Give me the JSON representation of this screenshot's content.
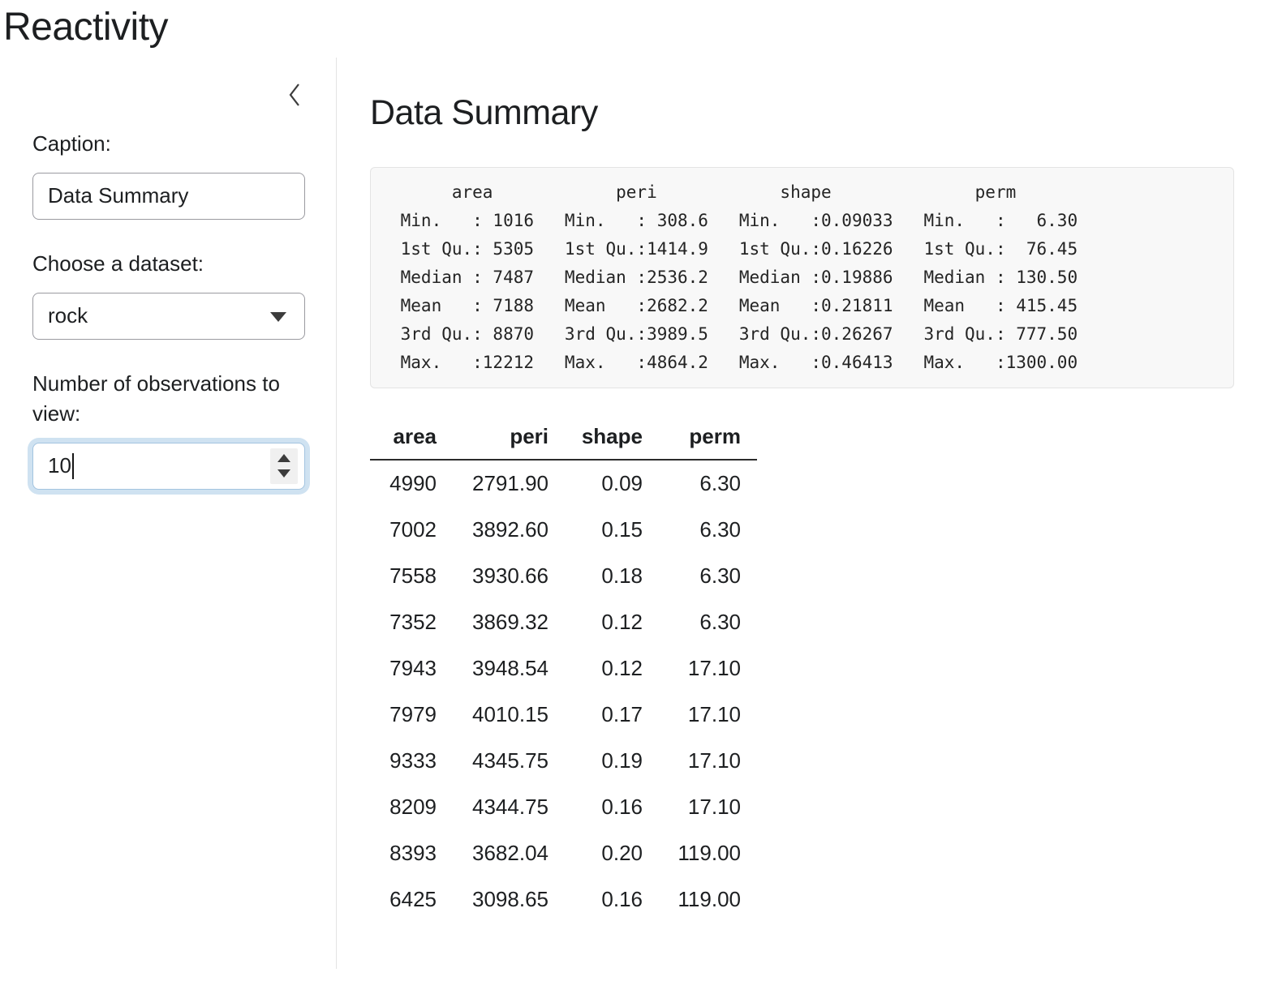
{
  "app": {
    "title": "Reactivity"
  },
  "sidebar": {
    "caption": {
      "label": "Caption:",
      "value": "Data Summary"
    },
    "dataset": {
      "label": "Choose a dataset:",
      "value": "rock"
    },
    "observations": {
      "label": "Number of observations to view:",
      "value": "10"
    }
  },
  "main": {
    "heading": "Data Summary",
    "summary_lines": [
      "      area            peri            shape              perm       ",
      " Min.   : 1016   Min.   : 308.6   Min.   :0.09033   Min.   :   6.30",
      " 1st Qu.: 5305   1st Qu.:1414.9   1st Qu.:0.16226   1st Qu.:  76.45",
      " Median : 7487   Median :2536.2   Median :0.19886   Median : 130.50",
      " Mean   : 7188   Mean   :2682.2   Mean   :0.21811   Mean   : 415.45",
      " 3rd Qu.: 8870   3rd Qu.:3989.5   3rd Qu.:0.26267   3rd Qu.: 777.50",
      " Max.   :12212   Max.   :4864.2   Max.   :0.46413   Max.   :1300.00"
    ],
    "table": {
      "columns": [
        "area",
        "peri",
        "shape",
        "perm"
      ],
      "rows": [
        [
          "4990",
          "2791.90",
          "0.09",
          "6.30"
        ],
        [
          "7002",
          "3892.60",
          "0.15",
          "6.30"
        ],
        [
          "7558",
          "3930.66",
          "0.18",
          "6.30"
        ],
        [
          "7352",
          "3869.32",
          "0.12",
          "6.30"
        ],
        [
          "7943",
          "3948.54",
          "0.12",
          "17.10"
        ],
        [
          "7979",
          "4010.15",
          "0.17",
          "17.10"
        ],
        [
          "9333",
          "4345.75",
          "0.19",
          "17.10"
        ],
        [
          "8209",
          "4344.75",
          "0.16",
          "17.10"
        ],
        [
          "8393",
          "3682.04",
          "0.20",
          "119.00"
        ],
        [
          "6425",
          "3098.65",
          "0.16",
          "119.00"
        ]
      ]
    }
  },
  "icons": {
    "sidebar_collapse": "chevron-left-icon",
    "dataset_dropdown": "chevron-down-icon",
    "spinner_up": "triangle-up-icon",
    "spinner_down": "triangle-down-icon"
  },
  "colors": {
    "text": "#1d1f21",
    "border_input": "#9a9aa0",
    "divider": "#e3e3e3",
    "summary_bg": "#f8f8f8",
    "summary_border": "#e4e4e4",
    "focus_border": "#a3c4e0",
    "focus_ring": "#cfe2f1",
    "spinner_bg": "#f0f0f0",
    "icon": "#3c3c3c",
    "table_rule": "#2b2b2b"
  }
}
